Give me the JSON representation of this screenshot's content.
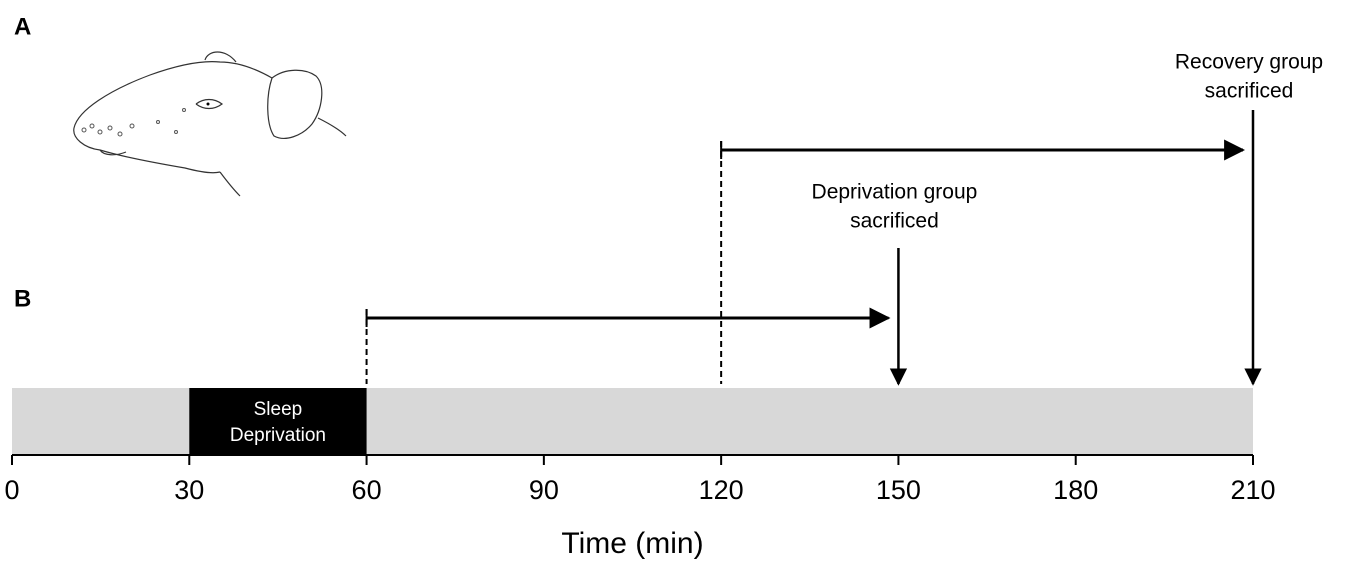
{
  "panels": [
    "A",
    "B"
  ],
  "timeline": {
    "label": "Time (min)",
    "lim": [
      0,
      210
    ],
    "ticks": [
      0,
      30,
      60,
      90,
      120,
      150,
      180,
      210
    ],
    "block": {
      "start": 30,
      "end": 60,
      "label": [
        "Sleep",
        "Deprivation"
      ]
    },
    "arrows": [
      {
        "start": 60,
        "end": 150,
        "label": [
          "Deprivation group",
          "sacrificed"
        ]
      },
      {
        "start": 120,
        "end": 210,
        "label": [
          "Recovery group",
          "sacrificed"
        ]
      }
    ]
  }
}
